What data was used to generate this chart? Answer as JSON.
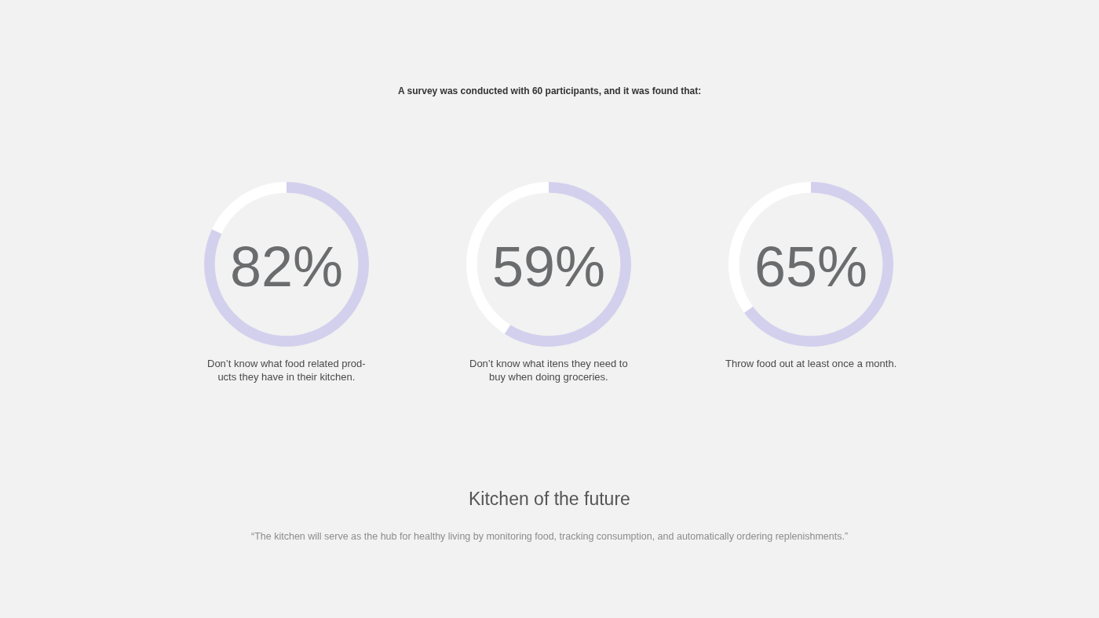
{
  "chart_data": [
    {
      "type": "other",
      "title": "A survey was conducted with 60 participants, and it was found that:"
    },
    {
      "type": "donut",
      "categories": [
        "Don’t know what food related prod-\nucts they have in their kitchen.",
        null
      ],
      "values": [
        82,
        18
      ],
      "colors": [
        "#d3d0ed",
        "#ffffff"
      ],
      "value_labels": [
        "82%",
        null
      ]
    },
    {
      "type": "donut",
      "categories": [
        "Don’t know what itens they need to\nbuy when doing groceries.",
        null
      ],
      "values": [
        59,
        41
      ],
      "colors": [
        "#d3d0ed",
        "#ffffff"
      ],
      "value_labels": [
        "59%",
        null
      ]
    },
    {
      "type": "donut",
      "categories": [
        "Throw food out at least once a month.",
        null
      ],
      "values": [
        65,
        35
      ],
      "colors": [
        "#d3d0ed",
        "#ffffff"
      ],
      "value_labels": [
        "65%",
        null
      ]
    },
    {
      "type": "other",
      "title": "Kitchen of the future",
      "annotations": [
        "“The kitchen will serve as the hub for healthy living by monitoring food, tracking consumption, and automatically ordering replenishments.”"
      ]
    }
  ]
}
